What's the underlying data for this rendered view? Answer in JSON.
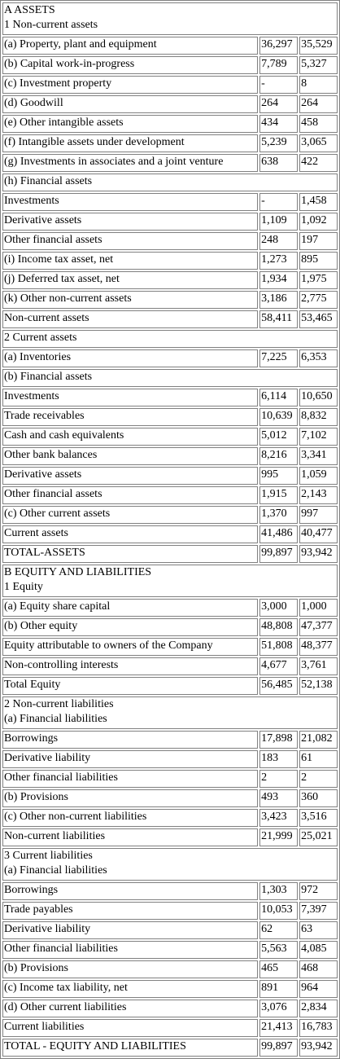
{
  "rows": [
    {
      "type": "header",
      "lines": [
        "A ASSETS",
        "1 Non-current assets"
      ]
    },
    {
      "type": "row",
      "label": "(a) Property, plant and equipment",
      "v1": "36,297",
      "v2": "35,529"
    },
    {
      "type": "row",
      "label": "(b) Capital work-in-progress",
      "v1": "7,789",
      "v2": "5,327"
    },
    {
      "type": "row",
      "label": "(c) Investment property",
      "v1": "-",
      "v2": "8"
    },
    {
      "type": "row",
      "label": "(d) Goodwill",
      "v1": "264",
      "v2": "264"
    },
    {
      "type": "row",
      "label": "(e) Other intangible assets",
      "v1": "434",
      "v2": "458"
    },
    {
      "type": "row",
      "label": "(f) Intangible assets under development",
      "v1": "5,239",
      "v2": "3,065"
    },
    {
      "type": "row",
      "label": "(g) Investments in associates and a joint venture",
      "v1": "638",
      "v2": "422"
    },
    {
      "type": "header",
      "lines": [
        "(h) Financial assets"
      ]
    },
    {
      "type": "row",
      "label": "Investments",
      "v1": "-",
      "v2": "1,458"
    },
    {
      "type": "row",
      "label": "Derivative assets",
      "v1": "1,109",
      "v2": "1,092"
    },
    {
      "type": "row",
      "label": "Other financial assets",
      "v1": "248",
      "v2": "197"
    },
    {
      "type": "row",
      "label": "(i) Income tax asset, net",
      "v1": "1,273",
      "v2": "895"
    },
    {
      "type": "row",
      "label": "(j) Deferred tax asset, net",
      "v1": "1,934",
      "v2": "1,975"
    },
    {
      "type": "row",
      "label": "(k) Other non-current assets",
      "v1": "3,186",
      "v2": "2,775"
    },
    {
      "type": "row",
      "label": "Non-current assets",
      "v1": "58,411",
      "v2": "53,465"
    },
    {
      "type": "header",
      "lines": [
        "2 Current assets"
      ]
    },
    {
      "type": "row",
      "label": "(a) Inventories",
      "v1": "7,225",
      "v2": "6,353"
    },
    {
      "type": "header",
      "lines": [
        "(b) Financial assets"
      ]
    },
    {
      "type": "row",
      "label": "Investments",
      "v1": "6,114",
      "v2": "10,650"
    },
    {
      "type": "row",
      "label": "Trade receivables",
      "v1": "10,639",
      "v2": "8,832"
    },
    {
      "type": "row",
      "label": "Cash and cash equivalents",
      "v1": "5,012",
      "v2": "7,102"
    },
    {
      "type": "row",
      "label": "Other bank balances",
      "v1": "8,216",
      "v2": "3,341"
    },
    {
      "type": "row",
      "label": "Derivative assets",
      "v1": "995",
      "v2": "1,059"
    },
    {
      "type": "row",
      "label": "Other financial assets",
      "v1": "1,915",
      "v2": "2,143"
    },
    {
      "type": "row",
      "label": "(c) Other current assets",
      "v1": "1,370",
      "v2": "997"
    },
    {
      "type": "row",
      "label": "Current assets",
      "v1": "41,486",
      "v2": "40,477"
    },
    {
      "type": "row",
      "label": "TOTAL-ASSETS",
      "v1": "99,897",
      "v2": "93,942"
    },
    {
      "type": "header",
      "lines": [
        "B EQUITY AND LIABILITIES",
        "1 Equity"
      ]
    },
    {
      "type": "row",
      "label": "(a) Equity share capital",
      "v1": "3,000",
      "v2": "1,000"
    },
    {
      "type": "row",
      "label": "(b) Other equity",
      "v1": "48,808",
      "v2": "47,377"
    },
    {
      "type": "row",
      "label": "Equity attributable to owners of the Company",
      "v1": "51,808",
      "v2": "48,377"
    },
    {
      "type": "row",
      "label": "Non-controlling interests",
      "v1": "4,677",
      "v2": "3,761"
    },
    {
      "type": "row",
      "label": "Total Equity",
      "v1": "56,485",
      "v2": "52,138"
    },
    {
      "type": "header",
      "lines": [
        "2 Non-current liabilities",
        "(a) Financial liabilities"
      ]
    },
    {
      "type": "row",
      "label": "Borrowings",
      "v1": "17,898",
      "v2": "21,082"
    },
    {
      "type": "row",
      "label": "Derivative liability",
      "v1": "183",
      "v2": "61"
    },
    {
      "type": "row",
      "label": "Other financial liabilities",
      "v1": "2",
      "v2": "2"
    },
    {
      "type": "row",
      "label": "(b) Provisions",
      "v1": "493",
      "v2": "360"
    },
    {
      "type": "row",
      "label": "(c) Other non-current liabilities",
      "v1": "3,423",
      "v2": "3,516"
    },
    {
      "type": "row",
      "label": "Non-current liabilities",
      "v1": "21,999",
      "v2": "25,021"
    },
    {
      "type": "header",
      "lines": [
        "3 Current liabilities",
        "(a) Financial liabilities"
      ]
    },
    {
      "type": "row",
      "label": "Borrowings",
      "v1": "1,303",
      "v2": "972"
    },
    {
      "type": "row",
      "label": "Trade payables",
      "v1": "10,053",
      "v2": "7,397"
    },
    {
      "type": "row",
      "label": "Derivative liability",
      "v1": "62",
      "v2": "63"
    },
    {
      "type": "row",
      "label": "Other financial liabilities",
      "v1": "5,563",
      "v2": "4,085"
    },
    {
      "type": "row",
      "label": "(b) Provisions",
      "v1": "465",
      "v2": "468"
    },
    {
      "type": "row",
      "label": "(c) Income tax liability, net",
      "v1": "891",
      "v2": "964"
    },
    {
      "type": "row",
      "label": "(d) Other current liabilities",
      "v1": "3,076",
      "v2": "2,834"
    },
    {
      "type": "row",
      "label": "Current liabilities",
      "v1": "21,413",
      "v2": "16,783"
    },
    {
      "type": "row",
      "label": "TOTAL - EQUITY AND LIABILITIES",
      "v1": "99,897",
      "v2": "93,942"
    }
  ]
}
